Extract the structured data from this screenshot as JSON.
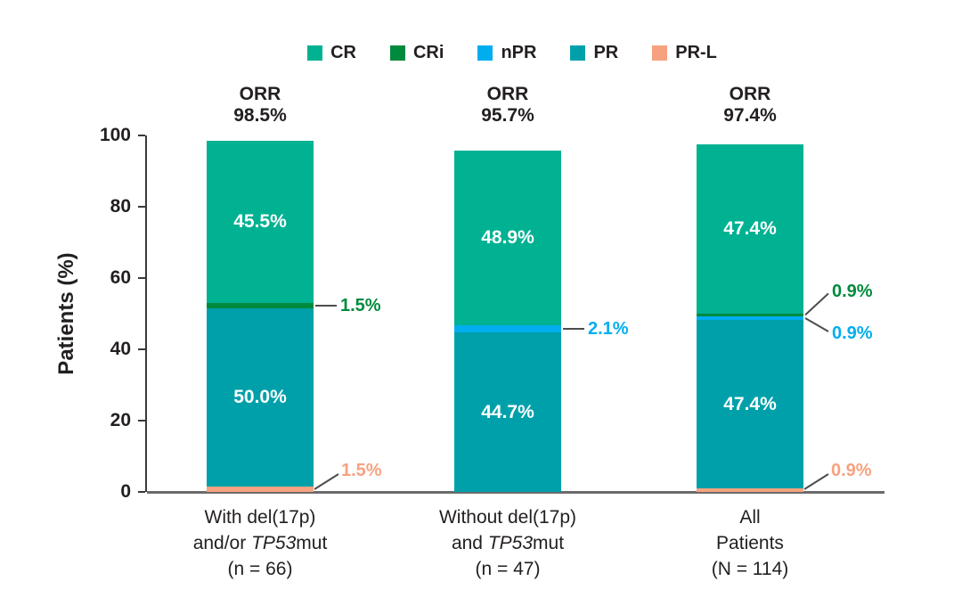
{
  "colors": {
    "axis": "#3a3a3a",
    "baseline": "#6b6b6b",
    "callout_line": "#4d4d4d",
    "text": "#231f20",
    "inside_label": "#ffffff"
  },
  "chart_data": {
    "type": "bar",
    "stacked": true,
    "title": "",
    "xlabel": "",
    "ylabel": "Patients (%)",
    "ylim": [
      0,
      100
    ],
    "yticks": [
      0,
      20,
      40,
      60,
      80,
      100
    ],
    "grid": false,
    "legend_position": "top",
    "legend_items": [
      {
        "name": "CR",
        "color": "#00B192"
      },
      {
        "name": "CRi",
        "color": "#008A3E"
      },
      {
        "name": "nPR",
        "color": "#00AEEF"
      },
      {
        "name": "PR",
        "color": "#00A0AA"
      },
      {
        "name": "PR-L",
        "color": "#F6A280"
      }
    ],
    "series_order_bottom_to_top": [
      "PR-L",
      "PR",
      "nPR",
      "CRi",
      "CR"
    ],
    "bars": [
      {
        "orr_title": "ORR",
        "orr_value": "98.5%",
        "category_lines": [
          [
            {
              "t": "With del(17p)"
            }
          ],
          [
            {
              "t": "and/or "
            },
            {
              "t": "TP53",
              "i": true
            },
            {
              "t": "mut"
            }
          ],
          [
            {
              "t": "(n = 66)"
            }
          ]
        ],
        "segments": [
          {
            "name": "PR-L",
            "value": 1.5,
            "label": "1.5%",
            "label_mode": "callout-diag-bottom"
          },
          {
            "name": "PR",
            "value": 50.0,
            "label": "50.0%",
            "label_mode": "inside"
          },
          {
            "name": "CRi",
            "value": 1.5,
            "label": "1.5%",
            "label_mode": "callout-h"
          },
          {
            "name": "CR",
            "value": 45.5,
            "label": "45.5%",
            "label_mode": "inside"
          }
        ]
      },
      {
        "orr_title": "ORR",
        "orr_value": "95.7%",
        "category_lines": [
          [
            {
              "t": "Without del(17p)"
            }
          ],
          [
            {
              "t": "and "
            },
            {
              "t": "TP53",
              "i": true
            },
            {
              "t": "mut"
            }
          ],
          [
            {
              "t": "(n = 47)"
            }
          ]
        ],
        "segments": [
          {
            "name": "PR",
            "value": 44.7,
            "label": "44.7%",
            "label_mode": "inside"
          },
          {
            "name": "nPR",
            "value": 2.1,
            "label": "2.1%",
            "label_mode": "callout-h"
          },
          {
            "name": "CR",
            "value": 48.9,
            "label": "48.9%",
            "label_mode": "inside"
          }
        ]
      },
      {
        "orr_title": "ORR",
        "orr_value": "97.4%",
        "category_lines": [
          [
            {
              "t": "All"
            }
          ],
          [
            {
              "t": "Patients"
            }
          ],
          [
            {
              "t": "(N = 114)"
            }
          ]
        ],
        "segments": [
          {
            "name": "PR-L",
            "value": 0.9,
            "label": "0.9%",
            "label_mode": "callout-diag-bottom"
          },
          {
            "name": "PR",
            "value": 47.4,
            "label": "47.4%",
            "label_mode": "inside"
          },
          {
            "name": "nPR",
            "value": 0.9,
            "label": "0.9%",
            "label_mode": "callout-fork-down"
          },
          {
            "name": "CRi",
            "value": 0.9,
            "label": "0.9%",
            "label_mode": "callout-fork-up"
          },
          {
            "name": "CR",
            "value": 47.4,
            "label": "47.4%",
            "label_mode": "inside"
          }
        ]
      }
    ]
  }
}
